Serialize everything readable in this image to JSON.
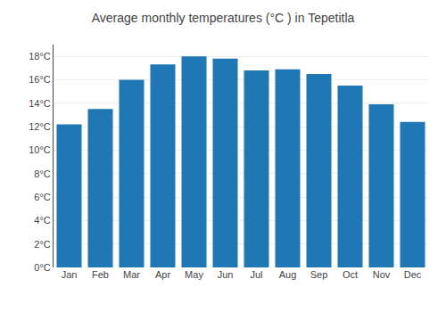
{
  "chart_data": {
    "type": "bar",
    "title": "Average monthly temperatures (°C ) in Tepetitla",
    "categories": [
      "Jan",
      "Feb",
      "Mar",
      "Apr",
      "May",
      "Jun",
      "Jul",
      "Aug",
      "Sep",
      "Oct",
      "Nov",
      "Dec"
    ],
    "values": [
      12.2,
      13.5,
      16.0,
      17.3,
      18.0,
      17.8,
      16.8,
      16.9,
      16.5,
      15.5,
      13.9,
      12.4
    ],
    "ylim": [
      0,
      19
    ],
    "yticks": [
      {
        "value": 0,
        "label": "0°C"
      },
      {
        "value": 2,
        "label": "2°C"
      },
      {
        "value": 4,
        "label": "4°C"
      },
      {
        "value": 6,
        "label": "6°C"
      },
      {
        "value": 8,
        "label": "8°C"
      },
      {
        "value": 10,
        "label": "10°C"
      },
      {
        "value": 12,
        "label": "12°C"
      },
      {
        "value": 14,
        "label": "14°C"
      },
      {
        "value": 16,
        "label": "16°C"
      },
      {
        "value": 18,
        "label": "18°C"
      }
    ],
    "grid": true
  }
}
